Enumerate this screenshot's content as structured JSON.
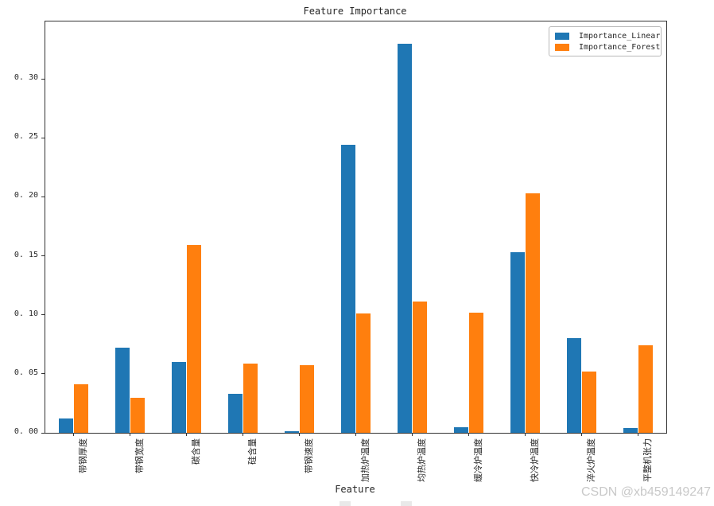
{
  "watermark": "CSDN @xb459149247",
  "chart_data": {
    "type": "bar",
    "title": "Feature Importance",
    "xlabel": "Feature",
    "ylabel": "",
    "grid": false,
    "legend_position": "upper right",
    "ylim": [
      0,
      0.3486
    ],
    "categories": [
      "带钢厚度",
      "带钢宽度",
      "碳含量",
      "硅含量",
      "带钢速度",
      "加热炉温度",
      "均热炉温度",
      "缓冷炉温度",
      "快冷炉温度",
      "淬火炉温度",
      "平整机张力"
    ],
    "series": [
      {
        "name": "Importance_Linear",
        "color": "#1f77b4",
        "values": [
          0.012,
          0.072,
          0.06,
          0.033,
          0.0013,
          0.244,
          0.33,
          0.005,
          0.153,
          0.08,
          0.004
        ]
      },
      {
        "name": "Importance_Forest",
        "color": "#ff7f0e",
        "values": [
          0.041,
          0.03,
          0.159,
          0.059,
          0.057,
          0.101,
          0.111,
          0.102,
          0.203,
          0.052,
          0.074
        ]
      }
    ],
    "y_ticks": {
      "values": [
        0,
        0.05,
        0.1,
        0.15,
        0.2,
        0.25,
        0.3
      ],
      "labels": [
        "0. 00",
        "0. 05",
        "0. 10",
        "0. 15",
        "0. 20",
        "0. 25",
        "0. 30"
      ]
    }
  }
}
